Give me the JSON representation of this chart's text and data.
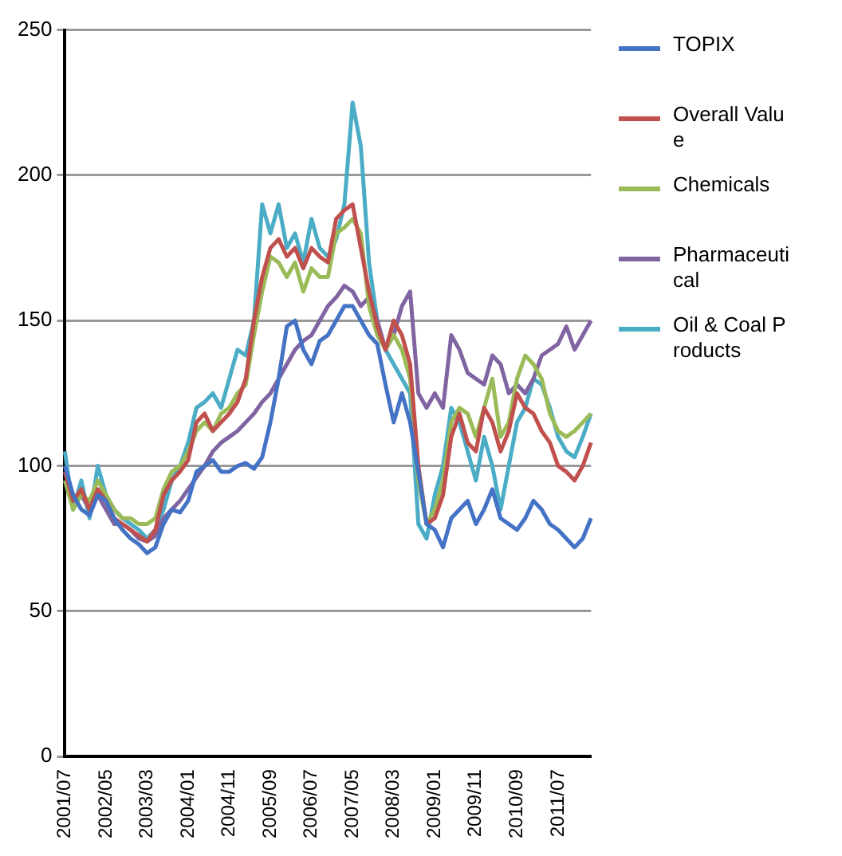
{
  "chart_data": {
    "type": "line",
    "categories": [
      "2001/07",
      null,
      null,
      null,
      null,
      "2002/05",
      null,
      null,
      null,
      null,
      "2003/03",
      null,
      null,
      null,
      null,
      "2004/01",
      null,
      null,
      null,
      null,
      "2004/11",
      null,
      null,
      null,
      null,
      "2005/09",
      null,
      null,
      null,
      null,
      "2006/07",
      null,
      null,
      null,
      null,
      "2007/05",
      null,
      null,
      null,
      null,
      "2008/03",
      null,
      null,
      null,
      null,
      "2009/01",
      null,
      null,
      null,
      null,
      "2009/11",
      null,
      null,
      null,
      null,
      "2010/09",
      null,
      null,
      null,
      null,
      "2011/07",
      null,
      null,
      null,
      null
    ],
    "series": [
      {
        "name": "TOPIX",
        "color": "#4472c4",
        "values": [
          100,
          90,
          85,
          83,
          90,
          88,
          82,
          78,
          75,
          73,
          70,
          72,
          80,
          85,
          84,
          88,
          98,
          100,
          102,
          98,
          98,
          100,
          101,
          99,
          103,
          115,
          130,
          148,
          150,
          140,
          135,
          143,
          145,
          150,
          155,
          155,
          150,
          145,
          142,
          128,
          115,
          125,
          115,
          98,
          80,
          78,
          72,
          82,
          85,
          88,
          80,
          85,
          92,
          82,
          80,
          78,
          82,
          88,
          85,
          80,
          78,
          75,
          72,
          75,
          82
        ]
      },
      {
        "name": "Overall Value",
        "color": "#c0504d",
        "values": [
          98,
          88,
          92,
          85,
          92,
          88,
          82,
          80,
          78,
          76,
          74,
          78,
          90,
          95,
          98,
          102,
          115,
          118,
          112,
          115,
          118,
          122,
          130,
          150,
          165,
          175,
          178,
          172,
          175,
          168,
          175,
          172,
          170,
          185,
          188,
          190,
          175,
          160,
          148,
          140,
          150,
          145,
          135,
          100,
          80,
          82,
          90,
          110,
          118,
          108,
          105,
          120,
          115,
          105,
          112,
          125,
          120,
          118,
          112,
          108,
          100,
          98,
          95,
          100,
          108
        ]
      },
      {
        "name": "Chemicals",
        "color": "#9bbb59",
        "values": [
          95,
          85,
          90,
          88,
          95,
          90,
          85,
          82,
          82,
          80,
          80,
          82,
          92,
          98,
          100,
          105,
          112,
          115,
          112,
          118,
          120,
          125,
          128,
          145,
          160,
          172,
          170,
          165,
          170,
          160,
          168,
          165,
          165,
          180,
          182,
          185,
          180,
          155,
          145,
          140,
          145,
          140,
          130,
          95,
          80,
          85,
          95,
          115,
          120,
          118,
          110,
          120,
          130,
          110,
          115,
          130,
          138,
          135,
          130,
          118,
          112,
          110,
          112,
          115,
          118
        ]
      },
      {
        "name": "Pharmaceutical",
        "color": "#8064a2",
        "values": [
          95,
          88,
          90,
          85,
          90,
          85,
          80,
          80,
          78,
          75,
          74,
          76,
          82,
          85,
          88,
          92,
          96,
          100,
          105,
          108,
          110,
          112,
          115,
          118,
          122,
          125,
          130,
          135,
          140,
          143,
          145,
          150,
          155,
          158,
          162,
          160,
          155,
          158,
          150,
          140,
          145,
          155,
          160,
          125,
          120,
          125,
          120,
          145,
          140,
          132,
          130,
          128,
          138,
          135,
          125,
          128,
          125,
          130,
          138,
          140,
          142,
          148,
          140,
          145,
          150
        ]
      },
      {
        "name": "Oil & Coal Products",
        "color": "#4bacc6",
        "values": [
          105,
          85,
          95,
          82,
          100,
          90,
          85,
          82,
          80,
          78,
          75,
          78,
          85,
          95,
          100,
          108,
          120,
          122,
          125,
          120,
          130,
          140,
          138,
          150,
          190,
          180,
          190,
          175,
          180,
          170,
          185,
          175,
          172,
          178,
          190,
          225,
          210,
          170,
          150,
          140,
          135,
          130,
          125,
          80,
          75,
          90,
          100,
          120,
          115,
          105,
          95,
          110,
          100,
          85,
          100,
          115,
          120,
          130,
          128,
          120,
          110,
          105,
          103,
          110,
          118
        ]
      }
    ],
    "ylim": [
      0,
      250
    ],
    "yticks": [
      0,
      50,
      100,
      150,
      200,
      250
    ],
    "grid": "y",
    "legend": "right",
    "marker": "none"
  }
}
